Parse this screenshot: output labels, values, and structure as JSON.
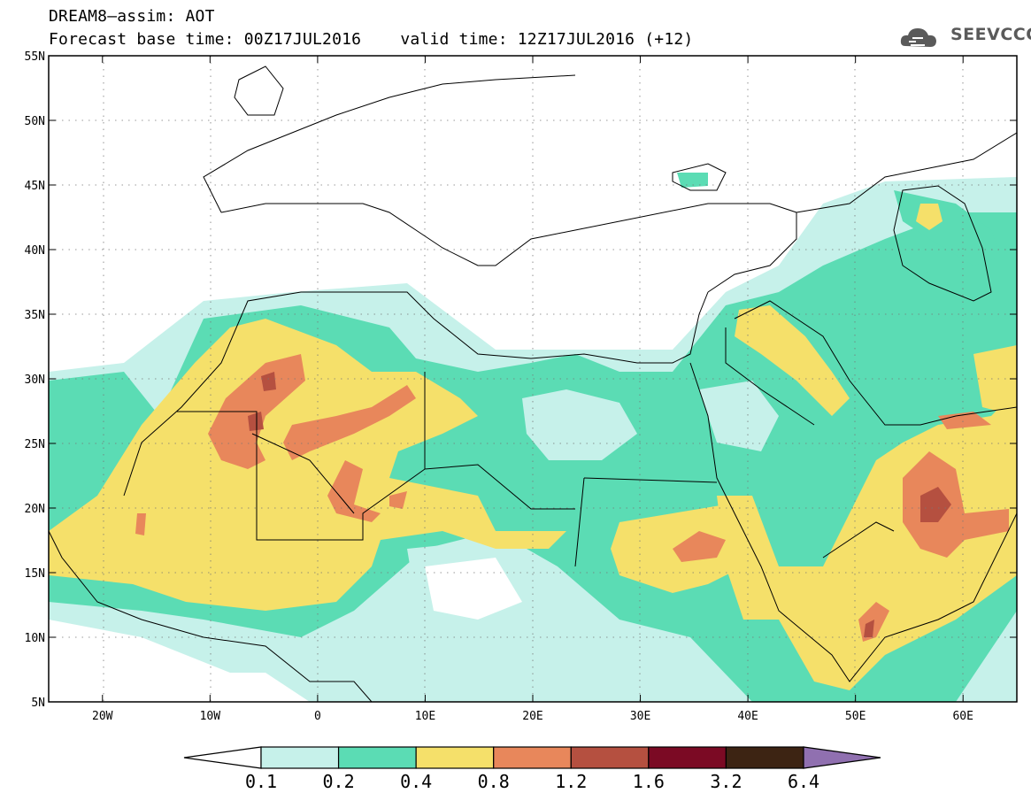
{
  "header": {
    "title_line1": "DREAM8–assim: AOT",
    "title_line2": "Forecast base time: 00Z17JUL2016    valid time: 12Z17JUL2016 (+12)"
  },
  "logo": {
    "text": "SEEVCCC",
    "icon": "cloud-logo-icon"
  },
  "map": {
    "lon_range": [
      -25,
      65
    ],
    "lat_range": [
      5,
      55
    ],
    "lon_ticks": [
      {
        "value": -20,
        "label": "20W"
      },
      {
        "value": -10,
        "label": "10W"
      },
      {
        "value": 0,
        "label": "0"
      },
      {
        "value": 10,
        "label": "10E"
      },
      {
        "value": 20,
        "label": "20E"
      },
      {
        "value": 30,
        "label": "30E"
      },
      {
        "value": 40,
        "label": "40E"
      },
      {
        "value": 50,
        "label": "50E"
      },
      {
        "value": 60,
        "label": "60E"
      }
    ],
    "lat_ticks": [
      {
        "value": 55,
        "label": "55N"
      },
      {
        "value": 50,
        "label": "50N"
      },
      {
        "value": 45,
        "label": "45N"
      },
      {
        "value": 40,
        "label": "40N"
      },
      {
        "value": 35,
        "label": "35N"
      },
      {
        "value": 30,
        "label": "30N"
      },
      {
        "value": 25,
        "label": "25N"
      },
      {
        "value": 20,
        "label": "20N"
      },
      {
        "value": 15,
        "label": "15N"
      },
      {
        "value": 10,
        "label": "10N"
      },
      {
        "value": 5,
        "label": "5N"
      }
    ],
    "grid": true
  },
  "colorbar": {
    "colors": [
      "#ffffff",
      "#c6f1ea",
      "#5bdcb4",
      "#f5e06a",
      "#e8875b",
      "#b55040",
      "#7b0a24",
      "#3d2413",
      "#9070b0"
    ],
    "labels": [
      "0.1",
      "0.2",
      "0.4",
      "0.8",
      "1.2",
      "1.6",
      "3.2",
      "6.4"
    ]
  }
}
